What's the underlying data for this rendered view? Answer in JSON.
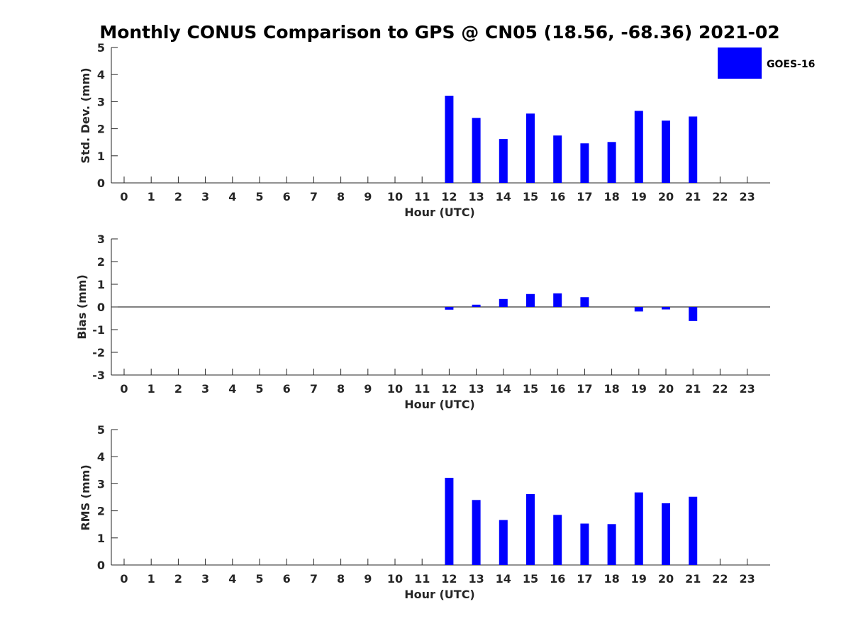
{
  "title": "Monthly CONUS Comparison to GPS @ CN05 (18.56, -68.36) 2021-02",
  "legend": {
    "label": "GOES-16",
    "color": "#0000ff"
  },
  "chart_data": [
    {
      "type": "bar",
      "series_name": "GOES-16",
      "xlabel": "Hour (UTC)",
      "ylabel": "Std. Dev. (mm)",
      "ylim": [
        0,
        5
      ],
      "yticks": [
        "0",
        "1",
        "2",
        "3",
        "4",
        "5"
      ],
      "xticks": [
        "0",
        "1",
        "2",
        "3",
        "4",
        "5",
        "6",
        "7",
        "8",
        "9",
        "10",
        "11",
        "12",
        "13",
        "14",
        "15",
        "16",
        "17",
        "18",
        "19",
        "20",
        "21",
        "22",
        "23"
      ],
      "x": [
        12,
        13,
        14,
        15,
        16,
        17,
        18,
        19,
        20,
        21
      ],
      "values": [
        3.22,
        2.4,
        1.62,
        2.56,
        1.75,
        1.46,
        1.51,
        2.66,
        2.3,
        2.45
      ]
    },
    {
      "type": "bar",
      "series_name": "GOES-16",
      "xlabel": "Hour (UTC)",
      "ylabel": "Bias (mm)",
      "ylim": [
        -3,
        3
      ],
      "yticks": [
        "-3",
        "-2",
        "-1",
        "0",
        "1",
        "2",
        "3"
      ],
      "xticks": [
        "0",
        "1",
        "2",
        "3",
        "4",
        "5",
        "6",
        "7",
        "8",
        "9",
        "10",
        "11",
        "12",
        "13",
        "14",
        "15",
        "16",
        "17",
        "18",
        "19",
        "20",
        "21",
        "22",
        "23"
      ],
      "x": [
        12,
        13,
        14,
        15,
        16,
        17,
        18,
        19,
        20,
        21
      ],
      "values": [
        -0.12,
        0.1,
        0.35,
        0.57,
        0.6,
        0.43,
        0.0,
        -0.2,
        -0.11,
        -0.62
      ]
    },
    {
      "type": "bar",
      "series_name": "GOES-16",
      "xlabel": "Hour (UTC)",
      "ylabel": "RMS (mm)",
      "ylim": [
        0,
        5
      ],
      "yticks": [
        "0",
        "1",
        "2",
        "3",
        "4",
        "5"
      ],
      "xticks": [
        "0",
        "1",
        "2",
        "3",
        "4",
        "5",
        "6",
        "7",
        "8",
        "9",
        "10",
        "11",
        "12",
        "13",
        "14",
        "15",
        "16",
        "17",
        "18",
        "19",
        "20",
        "21",
        "22",
        "23"
      ],
      "x": [
        12,
        13,
        14,
        15,
        16,
        17,
        18,
        19,
        20,
        21
      ],
      "values": [
        3.22,
        2.4,
        1.66,
        2.62,
        1.85,
        1.53,
        1.51,
        2.68,
        2.28,
        2.52
      ]
    }
  ]
}
